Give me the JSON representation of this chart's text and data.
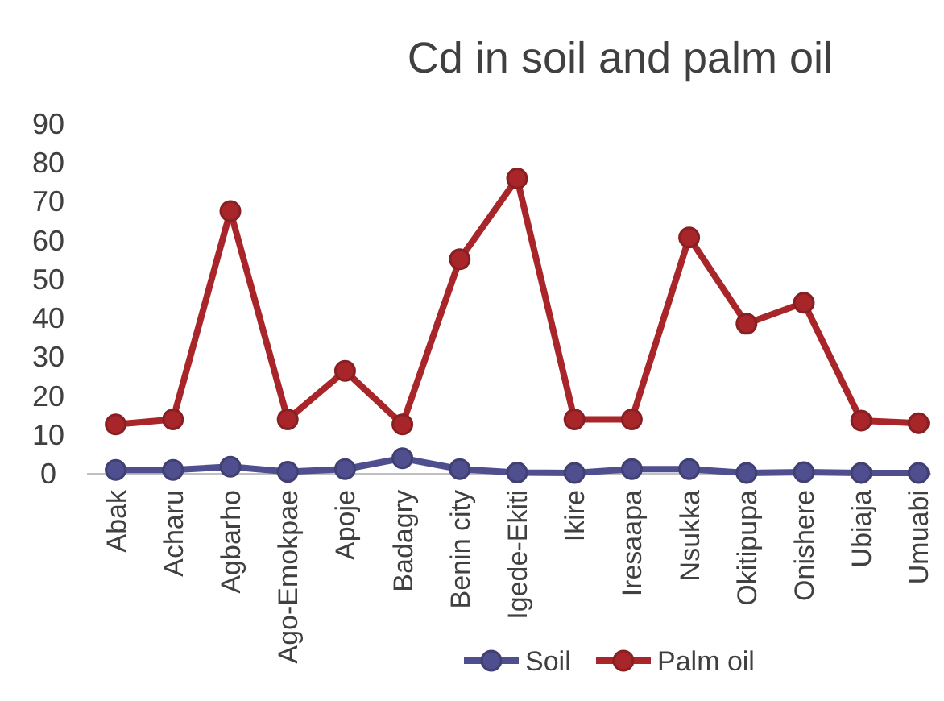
{
  "chart_data": {
    "type": "line",
    "title": "Cd in soil and palm oil",
    "categories": [
      "Abak",
      "Acharu",
      "Agbarho",
      "Ago-Emokpae",
      "Apoje",
      "Badagry",
      "Benin city",
      "Igede-Ekiti",
      "Ikire",
      "Iresaapa",
      "Nsukka",
      "Okitipupa",
      "Onishere",
      "Ubiaja",
      "Umuabi"
    ],
    "series": [
      {
        "name": "Soil",
        "color": "#4f4f8f",
        "values": [
          1,
          1,
          1.8,
          0.5,
          1.2,
          4,
          1.2,
          0.3,
          0.2,
          1.2,
          1.2,
          0.2,
          0.4,
          0.2,
          0.2
        ]
      },
      {
        "name": "Palm oil",
        "color": "#a8262a",
        "values": [
          12.7,
          14,
          67.6,
          14,
          26.5,
          12.7,
          55.2,
          76,
          14,
          14,
          60.8,
          38.6,
          44,
          13.7,
          13
        ]
      }
    ],
    "ylim": [
      0,
      90
    ],
    "yticks": [
      0,
      10,
      20,
      30,
      40,
      50,
      60,
      70,
      80,
      90
    ],
    "grid": false,
    "legend": "bottom",
    "marker": "circle",
    "line_style": "solid"
  }
}
